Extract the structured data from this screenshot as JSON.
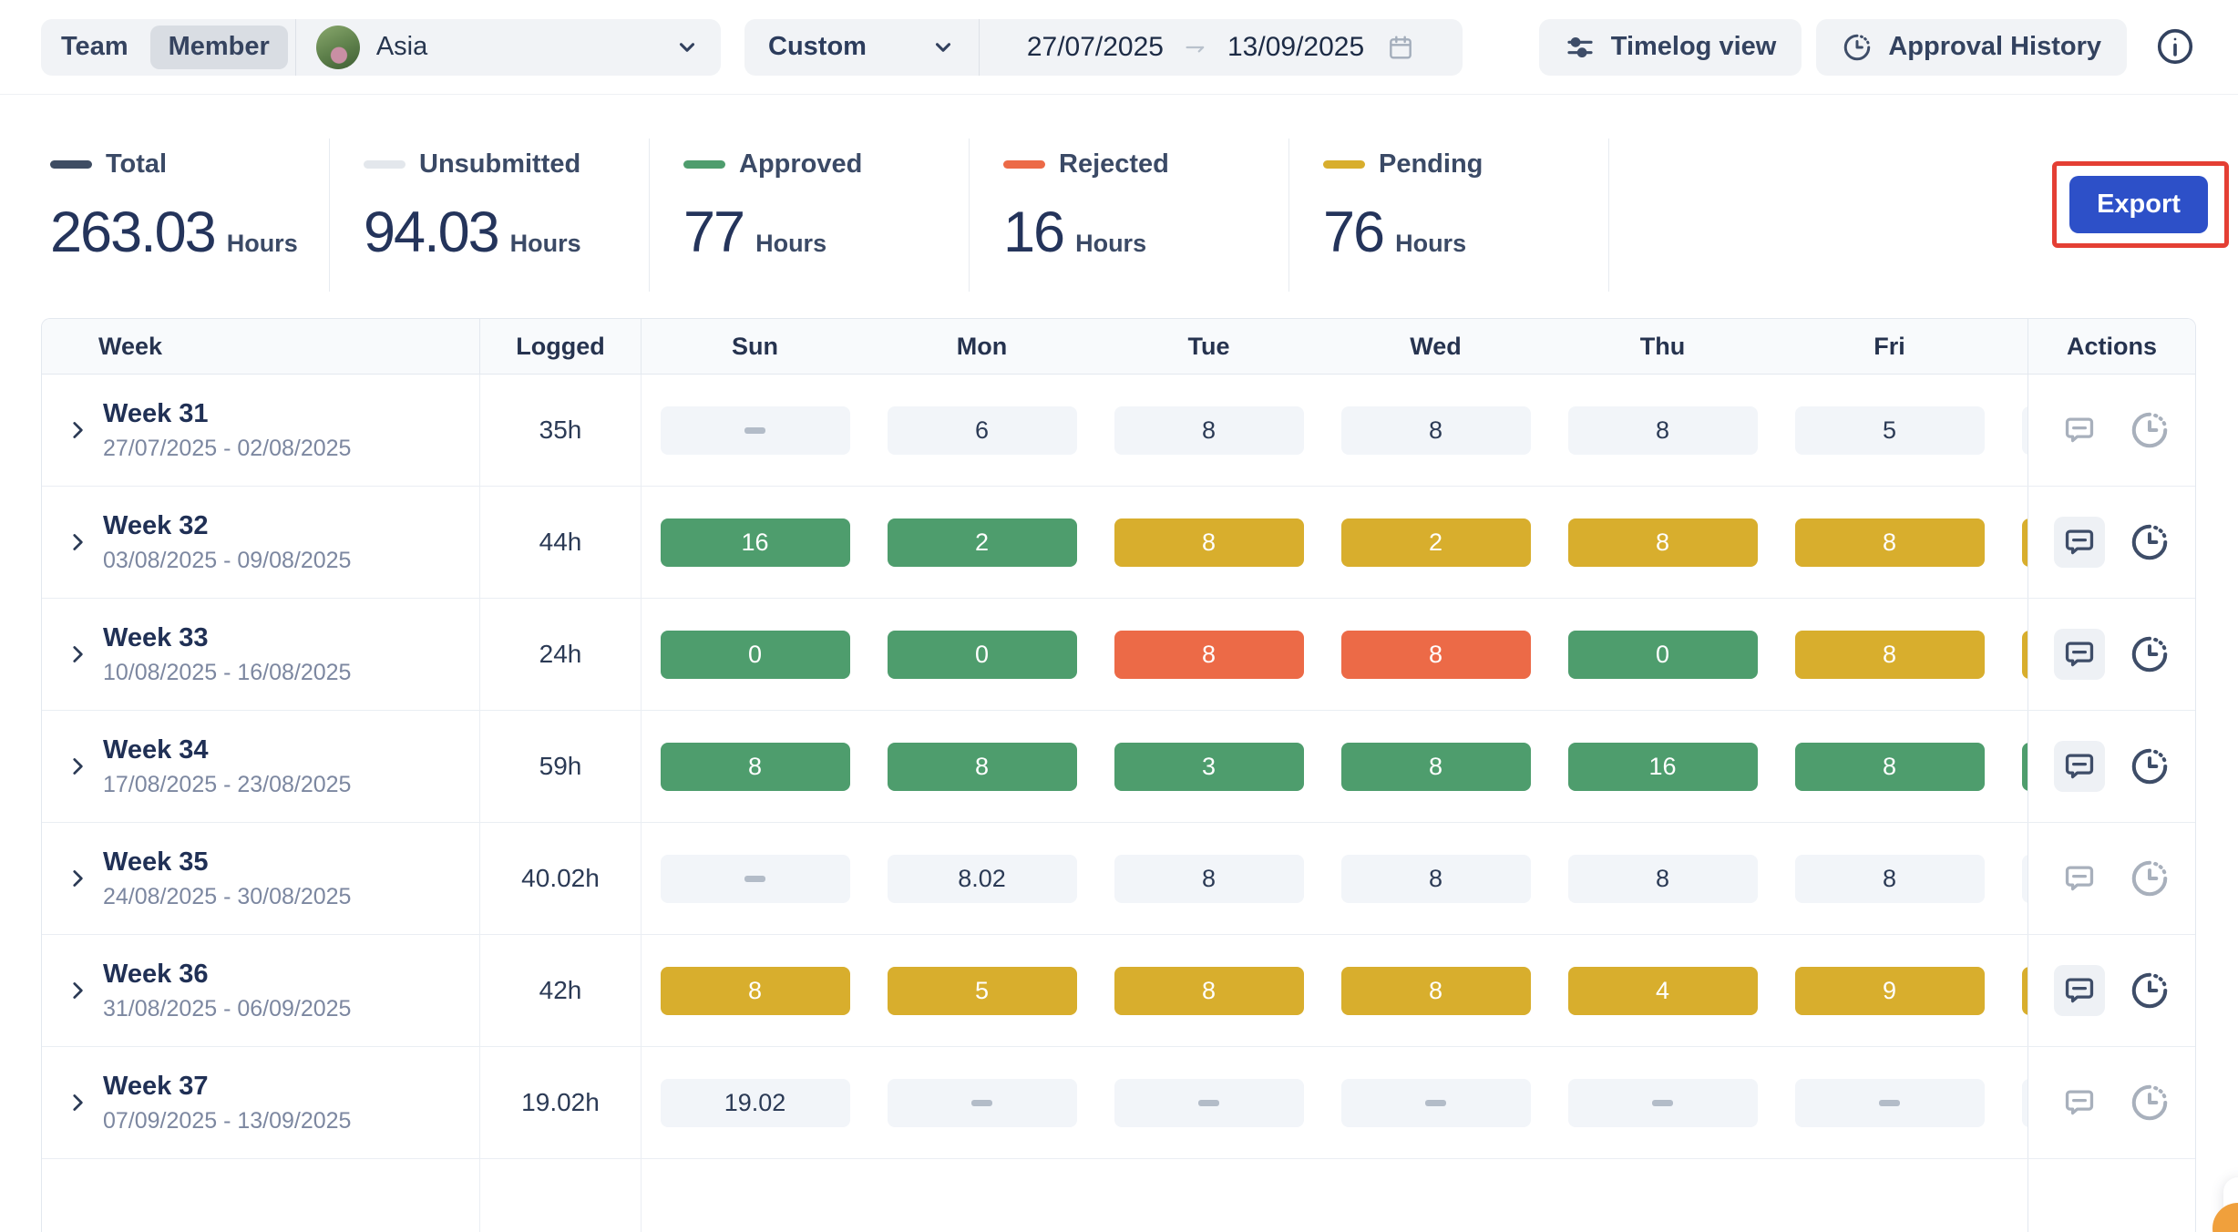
{
  "topbar": {
    "toggle": {
      "team": "Team",
      "member": "Member"
    },
    "member_select": {
      "name": "Asia",
      "avatar_icon": "user-photo"
    },
    "range_select": {
      "value": "Custom"
    },
    "date_range": {
      "start": "27/07/2025",
      "end": "13/09/2025",
      "separator": "arrow-right-icon",
      "calendar_icon": "calendar-icon"
    },
    "timelog_button": "Timelog view",
    "approval_button": "Approval History",
    "info_icon": "info-circle-icon"
  },
  "stats": [
    {
      "label": "Total",
      "value": "263.03",
      "unit": "Hours",
      "color": "#3f4d63"
    },
    {
      "label": "Unsubmitted",
      "value": "94.03",
      "unit": "Hours",
      "color": "#e3e7ec"
    },
    {
      "label": "Approved",
      "value": "77",
      "unit": "Hours",
      "color": "#4e9d6d"
    },
    {
      "label": "Rejected",
      "value": "16",
      "unit": "Hours",
      "color": "#ec6a47"
    },
    {
      "label": "Pending",
      "value": "76",
      "unit": "Hours",
      "color": "#d8ae2d"
    }
  ],
  "export_label": "Export",
  "colors": {
    "approved": "#4e9d6d",
    "pending": "#d8ae2d",
    "rejected": "#ec6a47",
    "unsubmitted_chip": "#f2f5f9",
    "export_blue": "#2d50c8",
    "annotation_red": "#e43f34"
  },
  "table": {
    "headers": [
      "Week",
      "Logged",
      "Sun",
      "Mon",
      "Tue",
      "Wed",
      "Thu",
      "Fri",
      "Actions"
    ],
    "rows": [
      {
        "week": "Week 31",
        "dates": "27/07/2025 - 02/08/2025",
        "logged": "35h",
        "active": false,
        "sat": "unsubmitted",
        "cells": [
          {
            "v": "-",
            "s": "empty"
          },
          {
            "v": "6",
            "s": "unsubmitted"
          },
          {
            "v": "8",
            "s": "unsubmitted"
          },
          {
            "v": "8",
            "s": "unsubmitted"
          },
          {
            "v": "8",
            "s": "unsubmitted"
          },
          {
            "v": "5",
            "s": "unsubmitted"
          }
        ]
      },
      {
        "week": "Week 32",
        "dates": "03/08/2025 - 09/08/2025",
        "logged": "44h",
        "active": true,
        "sat": "pending",
        "cells": [
          {
            "v": "16",
            "s": "approved"
          },
          {
            "v": "2",
            "s": "approved"
          },
          {
            "v": "8",
            "s": "pending"
          },
          {
            "v": "2",
            "s": "pending"
          },
          {
            "v": "8",
            "s": "pending"
          },
          {
            "v": "8",
            "s": "pending"
          }
        ]
      },
      {
        "week": "Week 33",
        "dates": "10/08/2025 - 16/08/2025",
        "logged": "24h",
        "active": true,
        "sat": "pending",
        "cells": [
          {
            "v": "0",
            "s": "approved"
          },
          {
            "v": "0",
            "s": "approved"
          },
          {
            "v": "8",
            "s": "rejected"
          },
          {
            "v": "8",
            "s": "rejected"
          },
          {
            "v": "0",
            "s": "approved"
          },
          {
            "v": "8",
            "s": "pending"
          }
        ]
      },
      {
        "week": "Week 34",
        "dates": "17/08/2025 - 23/08/2025",
        "logged": "59h",
        "active": true,
        "sat": "approved",
        "cells": [
          {
            "v": "8",
            "s": "approved"
          },
          {
            "v": "8",
            "s": "approved"
          },
          {
            "v": "3",
            "s": "approved"
          },
          {
            "v": "8",
            "s": "approved"
          },
          {
            "v": "16",
            "s": "approved"
          },
          {
            "v": "8",
            "s": "approved"
          }
        ]
      },
      {
        "week": "Week 35",
        "dates": "24/08/2025 - 30/08/2025",
        "logged": "40.02h",
        "active": false,
        "sat": "unsubmitted",
        "cells": [
          {
            "v": "-",
            "s": "empty"
          },
          {
            "v": "8.02",
            "s": "unsubmitted"
          },
          {
            "v": "8",
            "s": "unsubmitted"
          },
          {
            "v": "8",
            "s": "unsubmitted"
          },
          {
            "v": "8",
            "s": "unsubmitted"
          },
          {
            "v": "8",
            "s": "unsubmitted"
          }
        ]
      },
      {
        "week": "Week 36",
        "dates": "31/08/2025 - 06/09/2025",
        "logged": "42h",
        "active": true,
        "sat": "pending",
        "cells": [
          {
            "v": "8",
            "s": "pending"
          },
          {
            "v": "5",
            "s": "pending"
          },
          {
            "v": "8",
            "s": "pending"
          },
          {
            "v": "8",
            "s": "pending"
          },
          {
            "v": "4",
            "s": "pending"
          },
          {
            "v": "9",
            "s": "pending"
          }
        ]
      },
      {
        "week": "Week 37",
        "dates": "07/09/2025 - 13/09/2025",
        "logged": "19.02h",
        "active": false,
        "sat": "unsubmitted",
        "cells": [
          {
            "v": "19.02",
            "s": "unsubmitted"
          },
          {
            "v": "-",
            "s": "empty"
          },
          {
            "v": "-",
            "s": "empty"
          },
          {
            "v": "-",
            "s": "empty"
          },
          {
            "v": "-",
            "s": "empty"
          },
          {
            "v": "-",
            "s": "empty"
          }
        ]
      }
    ]
  }
}
